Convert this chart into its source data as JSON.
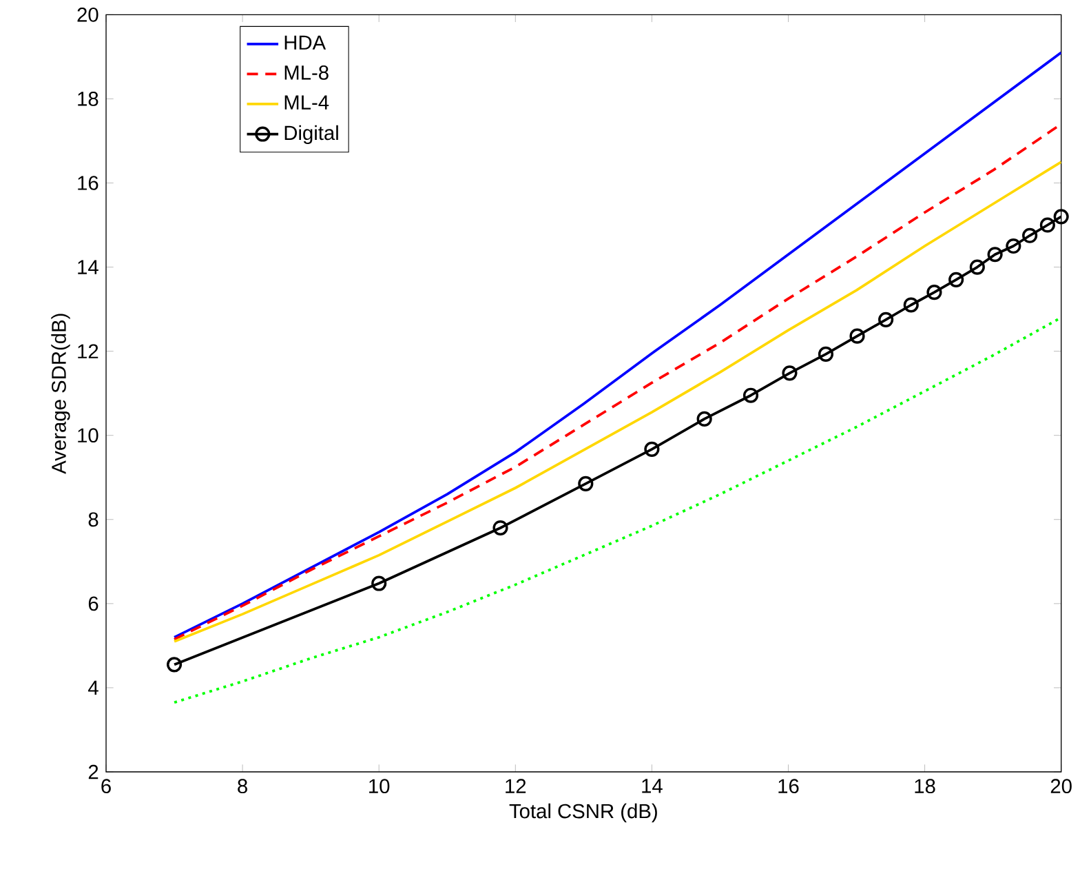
{
  "chart_data": {
    "type": "line",
    "xlabel": "Total CSNR (dB)",
    "ylabel": "Average SDR(dB)",
    "xlim": [
      6,
      20
    ],
    "ylim": [
      2,
      20
    ],
    "xticks": [
      6,
      8,
      10,
      12,
      14,
      16,
      18,
      20
    ],
    "yticks": [
      2,
      4,
      6,
      8,
      10,
      12,
      14,
      16,
      18,
      20
    ],
    "grid": false,
    "legend": "top left",
    "series": [
      {
        "name": "HDA",
        "color": "#0000ff",
        "line_style": "solid",
        "marker": "none",
        "x": [
          7,
          8,
          9,
          10,
          11,
          12,
          13,
          14,
          15,
          16,
          17,
          18,
          19,
          20
        ],
        "values": [
          5.2,
          6.0,
          6.85,
          7.7,
          8.6,
          9.6,
          10.75,
          11.95,
          13.1,
          14.3,
          15.5,
          16.7,
          17.9,
          19.1
        ]
      },
      {
        "name": "ML-8",
        "color": "#ff0000",
        "line_style": "dashed",
        "marker": "none",
        "x": [
          7,
          8,
          9,
          10,
          11,
          12,
          13,
          14,
          15,
          16,
          17,
          18,
          19,
          20
        ],
        "values": [
          5.15,
          5.95,
          6.8,
          7.6,
          8.4,
          9.25,
          10.25,
          11.25,
          12.2,
          13.25,
          14.25,
          15.3,
          16.3,
          17.4
        ]
      },
      {
        "name": "ML-4",
        "color": "#ffd700",
        "line_style": "solid",
        "marker": "none",
        "x": [
          7,
          8,
          9,
          10,
          11,
          12,
          13,
          14,
          15,
          16,
          17,
          18,
          19,
          20
        ],
        "values": [
          5.1,
          5.75,
          6.45,
          7.15,
          7.95,
          8.75,
          9.65,
          10.55,
          11.5,
          12.5,
          13.45,
          14.5,
          15.5,
          16.5
        ]
      },
      {
        "name": "Digital",
        "color": "#000000",
        "line_style": "solid",
        "marker": "circle",
        "x": [
          7,
          10,
          11.78,
          13.03,
          14,
          14.77,
          15.45,
          16.02,
          16.55,
          17.01,
          17.43,
          17.8,
          18.14,
          18.46,
          18.77,
          19.03,
          19.3,
          19.54,
          19.8,
          20
        ],
        "values": [
          4.55,
          6.48,
          7.8,
          8.85,
          9.67,
          10.39,
          10.95,
          11.48,
          11.93,
          12.36,
          12.75,
          13.1,
          13.4,
          13.7,
          14.0,
          14.3,
          14.5,
          14.75,
          15.0,
          15.2
        ]
      },
      {
        "color": "#00ff00",
        "line_style": "dotted",
        "marker": "none",
        "x": [
          7,
          8,
          9,
          10,
          11,
          12,
          13,
          14,
          15,
          16,
          17,
          18,
          19,
          20
        ],
        "values": [
          3.65,
          4.15,
          4.7,
          5.2,
          5.8,
          6.45,
          7.15,
          7.85,
          8.6,
          9.4,
          10.2,
          11.05,
          11.9,
          12.8
        ]
      }
    ]
  }
}
